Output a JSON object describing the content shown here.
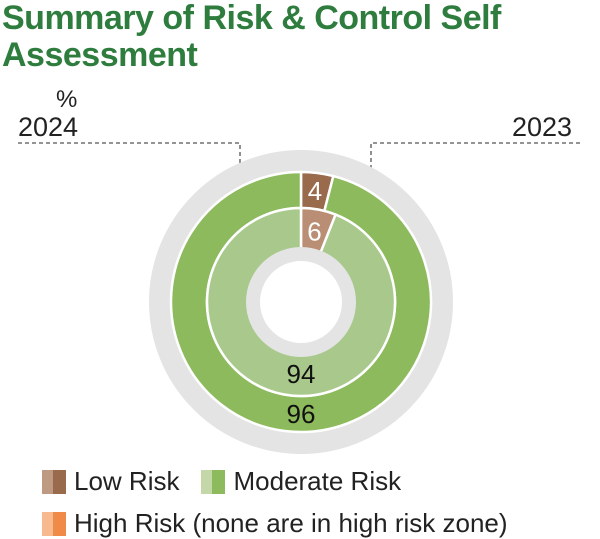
{
  "title": "Summary of Risk & Control Self Assessment",
  "unit": "%",
  "legend": {
    "low": "Low Risk",
    "moderate": "Moderate Risk",
    "high": "High Risk (none are in high risk zone)"
  },
  "colors": {
    "title": "#2e7d3e",
    "low_outer": "#9a6a4d",
    "low_inner": "#b98e74",
    "moderate_outer": "#8cba5d",
    "moderate_inner": "#a9c98c",
    "high": "#f08a48",
    "track": "#e4e4e4"
  },
  "chart_data": {
    "type": "pie",
    "subtype": "nested-donut",
    "unit": "%",
    "series": [
      {
        "name": "2024",
        "ring": "inner",
        "values": {
          "Low Risk": 6,
          "Moderate Risk": 94,
          "High Risk": 0
        },
        "labels": {
          "Low Risk": "6",
          "Moderate Risk": "94"
        }
      },
      {
        "name": "2023",
        "ring": "outer",
        "values": {
          "Low Risk": 4,
          "Moderate Risk": 96,
          "High Risk": 0
        },
        "labels": {
          "Low Risk": "4",
          "Moderate Risk": "96"
        }
      }
    ],
    "legend": [
      "Low Risk",
      "Moderate Risk",
      "High Risk (none are in high risk zone)"
    ],
    "legend_position": "bottom"
  }
}
